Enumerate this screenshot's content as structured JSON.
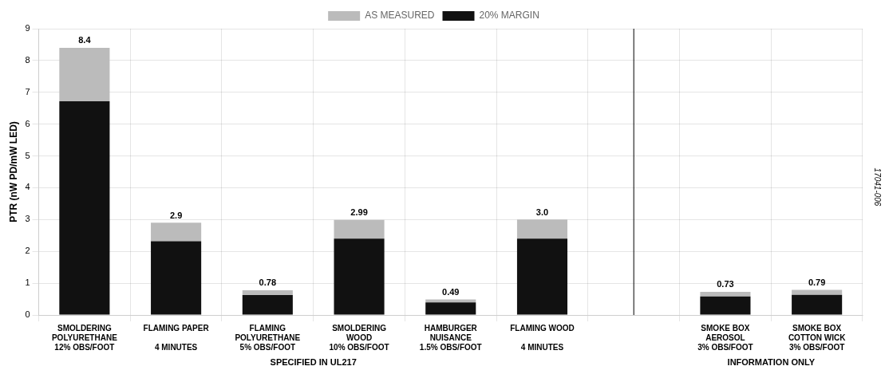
{
  "chart_data": {
    "type": "bar",
    "ylabel": "PTR (nW PD/mW LED)",
    "categories": [
      "SMOLDERING\nPOLYURETHANE\n12% OBS/FOOT",
      "FLAMING PAPER\n\n4 MINUTES",
      "FLAMING\nPOLYURETHANE\n5% OBS/FOOT",
      "SMOLDERING\nWOOD\n10% OBS/FOOT",
      "HAMBURGER\nNUISANCE\n1.5% OBS/FOOT",
      "FLAMING WOOD\n\n4 MINUTES",
      null,
      "SMOKE BOX\nAEROSOL\n3% OBS/FOOT",
      "SMOKE BOX\nCOTTON WICK\n3% OBS/FOOT"
    ],
    "series": [
      {
        "name": "20% MARGIN",
        "color": "#111111",
        "values": [
          6.72,
          2.32,
          0.624,
          2.4,
          0.392,
          2.4,
          0.0,
          0.584,
          0.632
        ]
      },
      {
        "name": "AS MEASURED",
        "color": "#bbbbbb",
        "values": [
          1.68,
          0.58,
          0.156,
          0.59,
          0.098,
          0.6,
          0.0,
          0.146,
          0.158
        ]
      }
    ],
    "totals": [
      8.4,
      2.9,
      0.78,
      2.99,
      0.49,
      3.0,
      null,
      0.73,
      0.79
    ],
    "total_labels": [
      "8.4",
      "2.9",
      "0.78",
      "2.99",
      "0.49",
      "3.0",
      null,
      "0.73",
      "0.79"
    ],
    "group_labels": [
      {
        "text": "SPECIFIED IN UL217",
        "first": "SMOLDERING\nPOLYURETHANE\n12% OBS/FOOT",
        "last": "FLAMING WOOD\n\n4 MINUTES"
      },
      {
        "text": "INFORMATION ONLY",
        "first": "SMOKE BOX\nAEROSOL\n3% OBS/FOOT",
        "last": "SMOKE BOX\nCOTTON WICK\n3% OBS/FOOT"
      }
    ],
    "annotation": "17041-006",
    "stacked": true,
    "ylim": [
      0,
      9
    ],
    "yticks": [
      0,
      1,
      2,
      3,
      4,
      5,
      6,
      7,
      8,
      9
    ],
    "grid": true,
    "legend": "top"
  }
}
